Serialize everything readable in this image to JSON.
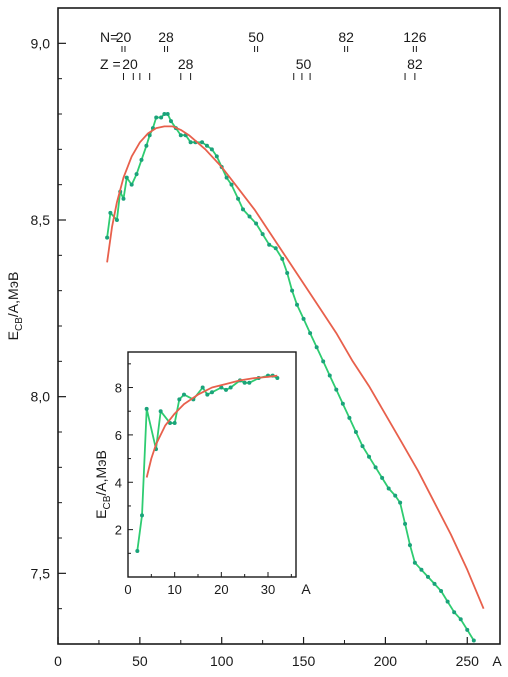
{
  "chart_data": [
    {
      "type": "line",
      "title": "",
      "xlabel": "A",
      "ylabel": "Eсв/A, МэВ",
      "ylabel_main": "E",
      "ylabel_sub": "CB",
      "ylabel_rest": "/A,МэВ",
      "xlim": [
        0,
        270
      ],
      "ylim": [
        7.3,
        9.1
      ],
      "x_ticks": [
        0,
        50,
        100,
        150,
        200,
        250
      ],
      "x_tick_labels": [
        "0",
        "50",
        "100",
        "150",
        "200",
        "250"
      ],
      "y_ticks": [
        7.5,
        8.0,
        8.5,
        9.0
      ],
      "y_tick_labels": [
        "7,5",
        "8,0",
        "8,5",
        "9,0"
      ],
      "grid": false,
      "magic_numbers": {
        "N_label": "N=",
        "N": [
          {
            "text": "20",
            "x": 40
          },
          {
            "text": "28",
            "x": 66
          },
          {
            "text": "50",
            "x": 121
          },
          {
            "text": "82",
            "x": 176
          },
          {
            "text": "126",
            "x": 218
          }
        ],
        "Z_label": "Z =",
        "Z": [
          {
            "text": "20",
            "x": 44
          },
          {
            "text": "28",
            "x": 78
          },
          {
            "text": "50",
            "x": 150
          },
          {
            "text": "82",
            "x": 218
          }
        ],
        "N_marks": [
          40,
          66,
          121,
          176,
          218
        ],
        "Z_marks": [
          40,
          46,
          50,
          56,
          75,
          81,
          144,
          149,
          154,
          212,
          218
        ]
      },
      "series": [
        {
          "color": "#2ecc71",
          "marker_color": "#1aa37a",
          "x": [
            30,
            32,
            36,
            38,
            40,
            42,
            45,
            48,
            51,
            54,
            56,
            58,
            60,
            63,
            65,
            67,
            69,
            72,
            75,
            78,
            81,
            84,
            88,
            91,
            94,
            97,
            100,
            103,
            106,
            110,
            113,
            117,
            121,
            125,
            129,
            133,
            137,
            140,
            143,
            146,
            150,
            154,
            158,
            162,
            166,
            170,
            174,
            178,
            182,
            186,
            190,
            194,
            198,
            202,
            206,
            209,
            212,
            215,
            218,
            222,
            226,
            230,
            234,
            238,
            242,
            246,
            250,
            254
          ],
          "y": [
            8.45,
            8.52,
            8.5,
            8.58,
            8.56,
            8.62,
            8.6,
            8.63,
            8.67,
            8.71,
            8.74,
            8.76,
            8.79,
            8.79,
            8.8,
            8.8,
            8.78,
            8.76,
            8.74,
            8.74,
            8.72,
            8.72,
            8.72,
            8.71,
            8.7,
            8.68,
            8.65,
            8.62,
            8.6,
            8.56,
            8.53,
            8.51,
            8.49,
            8.46,
            8.43,
            8.42,
            8.39,
            8.35,
            8.3,
            8.26,
            8.22,
            8.18,
            8.14,
            8.1,
            8.06,
            8.02,
            7.98,
            7.94,
            7.9,
            7.86,
            7.83,
            7.8,
            7.77,
            7.74,
            7.72,
            7.7,
            7.64,
            7.58,
            7.53,
            7.51,
            7.49,
            7.47,
            7.45,
            7.42,
            7.39,
            7.37,
            7.34,
            7.31
          ]
        },
        {
          "color": "#e8604c",
          "x": [
            30,
            33,
            36,
            40,
            45,
            50,
            55,
            60,
            65,
            70,
            75,
            80,
            90,
            100,
            110,
            120,
            130,
            140,
            150,
            160,
            170,
            180,
            190,
            200,
            210,
            220,
            230,
            240,
            250,
            260
          ],
          "y": [
            8.38,
            8.48,
            8.55,
            8.62,
            8.68,
            8.72,
            8.745,
            8.76,
            8.765,
            8.765,
            8.755,
            8.74,
            8.7,
            8.65,
            8.59,
            8.53,
            8.46,
            8.39,
            8.32,
            8.25,
            8.18,
            8.1,
            8.03,
            7.95,
            7.87,
            7.79,
            7.7,
            7.61,
            7.51,
            7.4
          ]
        }
      ]
    },
    {
      "type": "line",
      "title": "",
      "xlabel": "A",
      "ylabel": "Eсв/A, МэВ",
      "ylabel_main": "E",
      "ylabel_sub": "CB",
      "ylabel_rest": "/A,МэВ",
      "xlim": [
        0,
        36
      ],
      "ylim": [
        0,
        9.5
      ],
      "x_ticks": [
        0,
        10,
        20,
        30
      ],
      "x_tick_labels": [
        "0",
        "10",
        "20",
        "30"
      ],
      "y_ticks": [
        2,
        4,
        6,
        8
      ],
      "y_tick_labels": [
        "2",
        "4",
        "6",
        "8"
      ],
      "grid": false,
      "series": [
        {
          "color": "#2ecc71",
          "marker_color": "#1aa37a",
          "x": [
            2,
            3,
            4,
            6,
            7,
            9,
            10,
            11,
            12,
            14,
            16,
            17,
            18,
            20,
            21,
            22,
            24,
            25,
            26,
            28,
            30,
            31,
            32
          ],
          "y": [
            1.1,
            2.6,
            7.1,
            5.4,
            7.0,
            6.5,
            6.5,
            7.5,
            7.7,
            7.5,
            8.0,
            7.7,
            7.8,
            8.0,
            7.9,
            8.0,
            8.3,
            8.2,
            8.2,
            8.4,
            8.5,
            8.5,
            8.4
          ]
        },
        {
          "color": "#e8604c",
          "x": [
            4,
            5,
            6,
            8,
            10,
            12,
            15,
            18,
            21,
            24,
            27,
            30,
            32
          ],
          "y": [
            4.2,
            5.0,
            5.6,
            6.4,
            6.9,
            7.3,
            7.7,
            8.0,
            8.15,
            8.3,
            8.4,
            8.45,
            8.5
          ]
        }
      ]
    }
  ]
}
